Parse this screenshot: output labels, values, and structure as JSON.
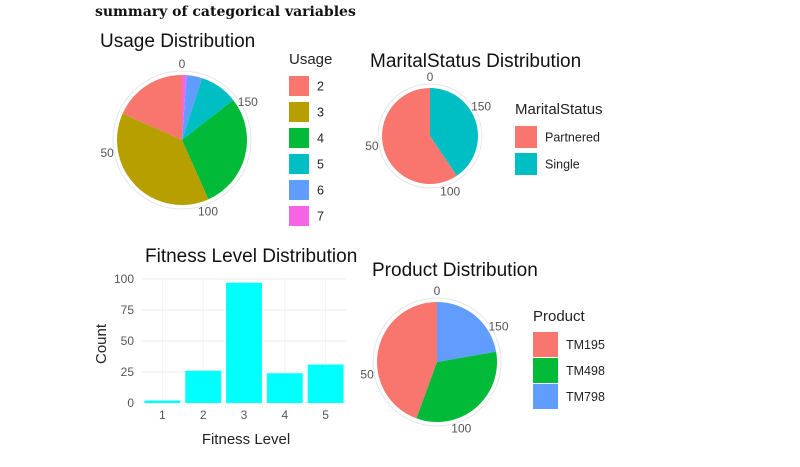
{
  "heading": "summary of categorical variables",
  "chart_data": [
    {
      "type": "pie",
      "title": "Usage Distribution",
      "legend_title": "Usage",
      "categories": [
        "2",
        "3",
        "4",
        "5",
        "6",
        "7"
      ],
      "values": [
        33,
        69,
        52,
        17,
        7,
        2
      ],
      "colors": [
        "#F8766D",
        "#B79F00",
        "#00BA38",
        "#00BFC4",
        "#619CFF",
        "#F564E3"
      ],
      "radial_ticks": [
        {
          "label": "0",
          "value": 0
        },
        {
          "label": "50",
          "value": 50
        },
        {
          "label": "100",
          "value": 100
        },
        {
          "label": "150",
          "value": 150
        }
      ],
      "legend": "right"
    },
    {
      "type": "pie",
      "title": "MaritalStatus Distribution",
      "legend_title": "MaritalStatus",
      "categories": [
        "Partnered",
        "Single"
      ],
      "values": [
        107,
        73
      ],
      "colors": [
        "#F8766D",
        "#00BFC4"
      ],
      "radial_ticks": [
        {
          "label": "0",
          "value": 0
        },
        {
          "label": "50",
          "value": 50
        },
        {
          "label": "100",
          "value": 100
        },
        {
          "label": "150",
          "value": 150
        }
      ],
      "legend": "right"
    },
    {
      "type": "bar",
      "title": "Fitness Level Distribution",
      "categories": [
        "1",
        "2",
        "3",
        "4",
        "5"
      ],
      "values": [
        2,
        26,
        97,
        24,
        31
      ],
      "color": "#00FFFF",
      "xlabel": "Fitness Level",
      "ylabel": "Count",
      "ylim": [
        0,
        100
      ],
      "yticks": [
        0,
        25,
        50,
        75,
        100
      ],
      "grid": true
    },
    {
      "type": "pie",
      "title": "Product Distribution",
      "legend_title": "Product",
      "categories": [
        "TM195",
        "TM498",
        "TM798"
      ],
      "values": [
        80,
        60,
        40
      ],
      "colors": [
        "#F8766D",
        "#00BA38",
        "#619CFF"
      ],
      "radial_ticks": [
        {
          "label": "0",
          "value": 0
        },
        {
          "label": "50",
          "value": 50
        },
        {
          "label": "100",
          "value": 100
        },
        {
          "label": "150",
          "value": 150
        }
      ],
      "legend": "right"
    }
  ]
}
